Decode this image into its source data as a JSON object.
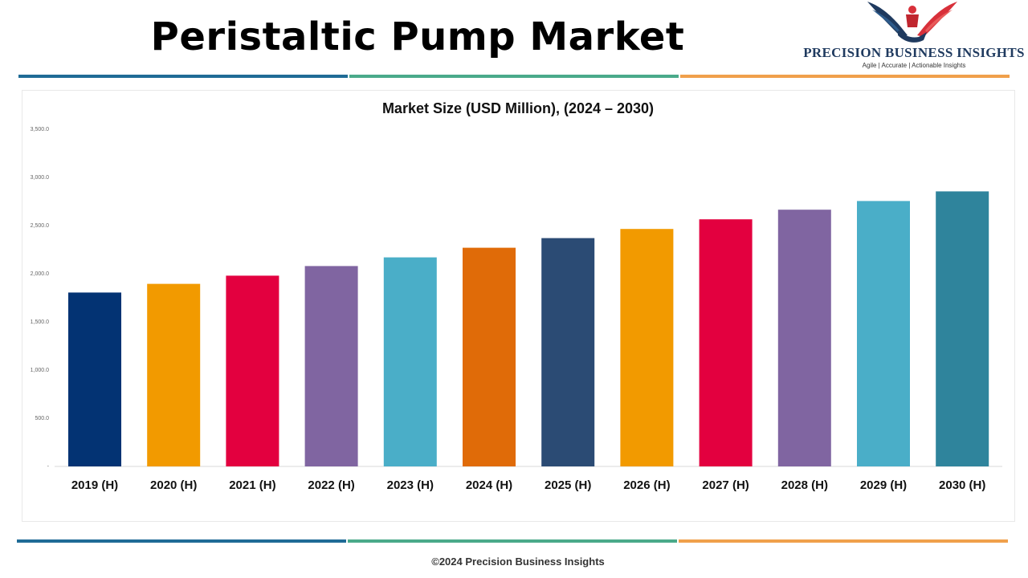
{
  "header": {
    "title": "Peristaltic Pump Market"
  },
  "logo": {
    "name": "PRECISION BUSINESS INSIGHTS",
    "tagline": "Agile | Accurate | Actionable Insights",
    "icon": "eagle-handshake-logo-icon"
  },
  "colors": {
    "rule_blue": "#1f6b96",
    "rule_green": "#4aaa8a",
    "rule_orange": "#f0a04b"
  },
  "chart_data": {
    "type": "bar",
    "title": "Market Size (USD Million), (2024 – 2030)",
    "xlabel": "",
    "ylabel": "",
    "ylim": [
      0,
      3500
    ],
    "yticks": [
      0,
      500,
      1000,
      1500,
      2000,
      2500,
      3000,
      3500
    ],
    "ytick_labels": [
      "-",
      "500.0",
      "1,000.0",
      "1,500.0",
      "2,000.0",
      "2,500.0",
      "3,000.0",
      "3,500.0"
    ],
    "grid": false,
    "legend": "none",
    "categories": [
      "2019 (H)",
      "2020 (H)",
      "2021 (H)",
      "2022 (H)",
      "2023 (H)",
      "2024 (H)",
      "2025 (H)",
      "2026 (H)",
      "2027 (H)",
      "2028 (H)",
      "2029 (H)",
      "2030 (H)"
    ],
    "values": [
      1805,
      1895,
      1980,
      2080,
      2170,
      2270,
      2370,
      2465,
      2565,
      2665,
      2755,
      2855
    ],
    "bar_colors": [
      "#033373",
      "#f29a00",
      "#e3003f",
      "#8065a1",
      "#4aaec8",
      "#e06b08",
      "#2b4b74",
      "#f29a00",
      "#e3003f",
      "#8065a1",
      "#4aaec8",
      "#2f849c"
    ]
  },
  "footer": {
    "copyright": "©2024 Precision Business Insights"
  }
}
